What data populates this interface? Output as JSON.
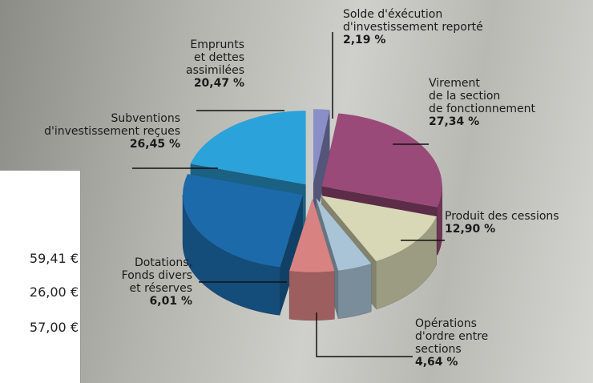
{
  "chart_data": {
    "type": "pie",
    "categories": [
      "Solde d'éxécution\nd'investissement reporté",
      "Virement\nde la section\nde fonctionnement",
      "Produit des cessions",
      "Opérations\nd'ordre entre\nsections",
      "Dotations,\nFonds divers\net réserves",
      "Subventions\nd'investissement reçues",
      "Emprunts\net dettes\nassimilées"
    ],
    "values": [
      2.19,
      27.34,
      12.9,
      4.64,
      6.01,
      26.45,
      20.47
    ],
    "value_labels": [
      "2,19 %",
      "27,34 %",
      "12,90 %",
      "4,64 %",
      "6,01 %",
      "26,45 %",
      "20,47 %"
    ],
    "colors": [
      "#8a8fc8",
      "#9a4a78",
      "#d8d8b6",
      "#a8c4d6",
      "#d88282",
      "#1c6aaa",
      "#2ba2da"
    ]
  },
  "side_panel": {
    "amounts": [
      "59,41 €",
      "26,00 €",
      "57,00 €"
    ]
  }
}
